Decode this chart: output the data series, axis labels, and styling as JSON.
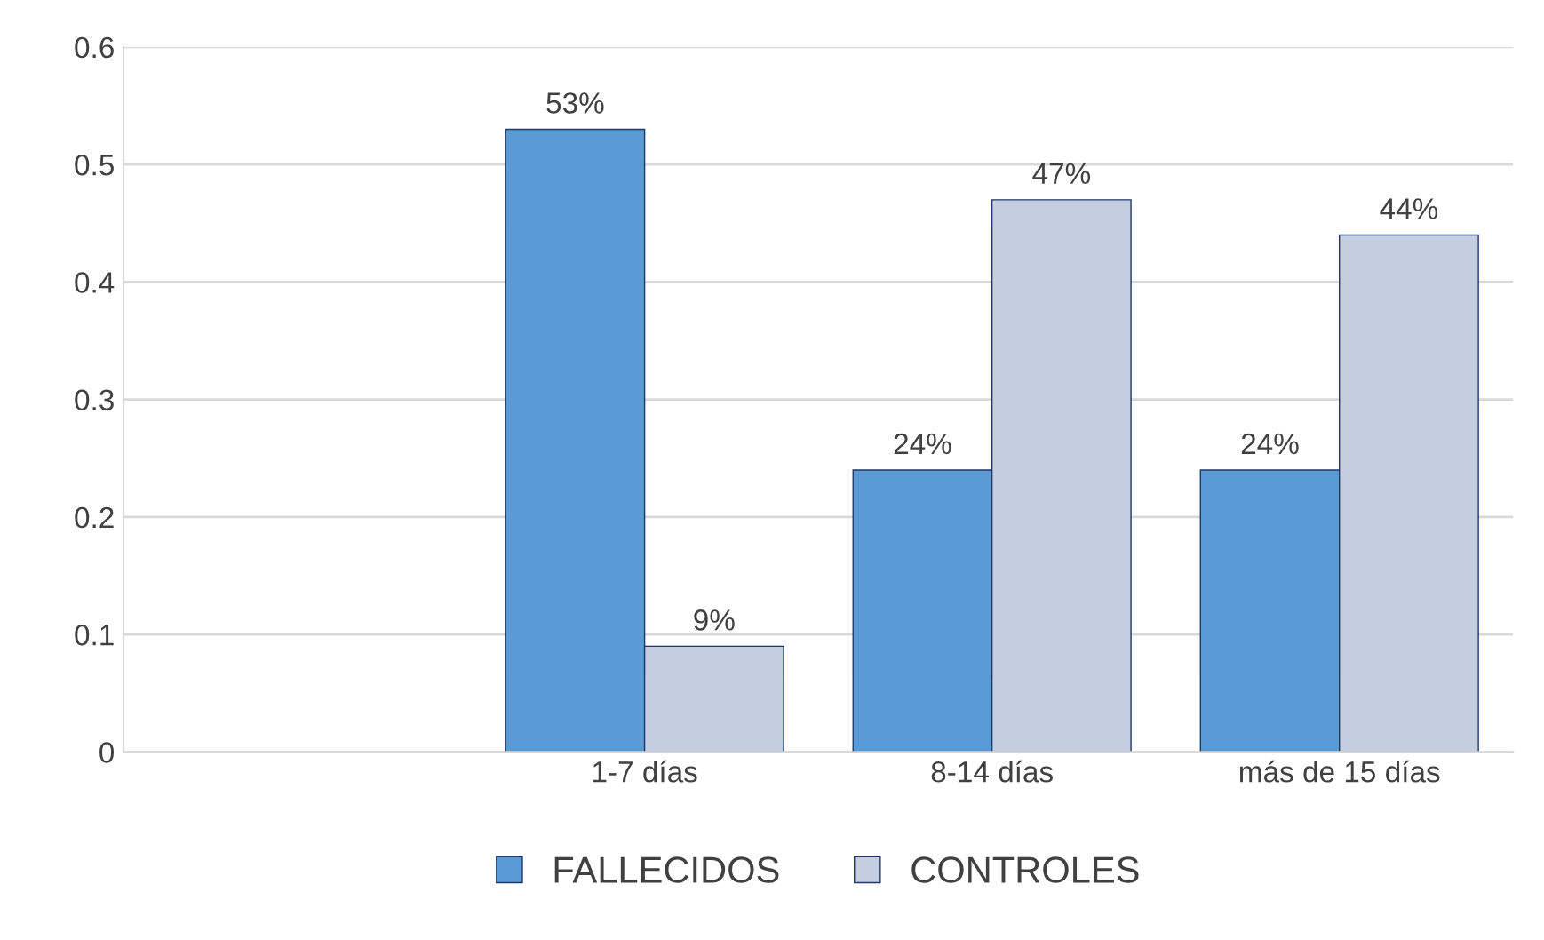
{
  "chart_data": {
    "type": "bar",
    "categories": [
      null,
      "1-7 días",
      "8-14 días",
      "más de 15 días"
    ],
    "series": [
      {
        "name": "FALLECIDOS",
        "color": "#5b9bd5",
        "values": [
          null,
          0.53,
          0.24,
          0.24
        ],
        "value_labels": [
          null,
          "53%",
          "24%",
          "24%"
        ]
      },
      {
        "name": "CONTROLES",
        "color": "#c5cde0",
        "values": [
          null,
          0.09,
          0.47,
          0.44
        ],
        "value_labels": [
          null,
          "9%",
          "47%",
          "44%"
        ]
      }
    ],
    "ylim": [
      0,
      0.6
    ],
    "yticks": [
      0,
      0.1,
      0.2,
      0.3,
      0.4,
      0.5,
      0.6
    ],
    "grid": "y",
    "legend": "bottom"
  }
}
